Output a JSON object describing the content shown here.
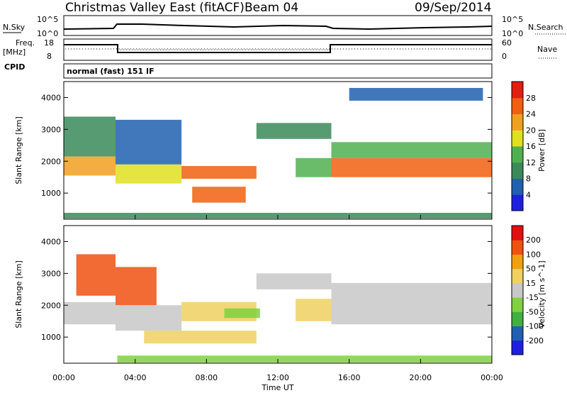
{
  "header": {
    "title": "Christmas Valley East (fitACF)",
    "beam": "Beam 04",
    "date": "09/Sep/2014"
  },
  "top_panels": {
    "nsky_label": "N.Sky",
    "nsearch_label": "N.Search",
    "nsky_ticks": [
      "10^5",
      "10^0"
    ],
    "nsearch_ticks": [
      "10^5",
      "10^0"
    ],
    "freq_label_1": "Freq.",
    "freq_label_2": "[MHz]",
    "freq_ticks": [
      "18",
      "8"
    ],
    "nave_label": "Nave",
    "nave_ticks": [
      "60",
      "0"
    ],
    "cpid_label": "CPID",
    "cpid_text": "normal (fast) 151 IF"
  },
  "x_axis": {
    "label": "Time UT",
    "ticks": [
      "00:00",
      "04:00",
      "08:00",
      "12:00",
      "16:00",
      "20:00",
      "00:00"
    ]
  },
  "colors": {
    "power_scale": [
      "#1f1fe0",
      "#2060b0",
      "#3a8a5a",
      "#50b050",
      "#e0e020",
      "#f0a020",
      "#f06010",
      "#e02010"
    ],
    "velocity_scale": [
      "#e01010",
      "#f05010",
      "#f0a010",
      "#f0d060",
      "#c8c8c8",
      "#80d040",
      "#40b040",
      "#2060b0",
      "#1f1fe0"
    ]
  },
  "chart_data": [
    {
      "type": "heatmap",
      "title": "Power",
      "xlabel": "Time UT",
      "ylabel": "Slant Range [km]",
      "xlim": [
        0,
        24
      ],
      "ylim": [
        180,
        4500
      ],
      "y_ticks": [
        1000,
        2000,
        3000,
        4000
      ],
      "colorbar": {
        "label": "Power [dB]",
        "ticks": [
          "4",
          "8",
          "12",
          "16",
          "20",
          "24",
          "28"
        ],
        "range": [
          0,
          30
        ]
      },
      "bands": [
        {
          "t": [
            0.0,
            2.9
          ],
          "range": [
            1550,
            2150
          ],
          "value": 22
        },
        {
          "t": [
            0.0,
            2.9
          ],
          "range": [
            2150,
            3400
          ],
          "value": 8
        },
        {
          "t": [
            2.9,
            6.6
          ],
          "range": [
            1300,
            1900
          ],
          "value": 18
        },
        {
          "t": [
            2.9,
            6.6
          ],
          "range": [
            1900,
            3300
          ],
          "value": 6
        },
        {
          "t": [
            6.6,
            10.8
          ],
          "range": [
            1450,
            1850
          ],
          "value": 24
        },
        {
          "t": [
            7.2,
            10.2
          ],
          "range": [
            700,
            1200
          ],
          "value": 26
        },
        {
          "t": [
            10.8,
            15.0
          ],
          "range": [
            2700,
            3200
          ],
          "value": 10
        },
        {
          "t": [
            13.0,
            15.0
          ],
          "range": [
            1500,
            2100
          ],
          "value": 14
        },
        {
          "t": [
            15.0,
            24.0
          ],
          "range": [
            1500,
            2100
          ],
          "value": 24
        },
        {
          "t": [
            15.0,
            24.0
          ],
          "range": [
            2100,
            2600
          ],
          "value": 12
        },
        {
          "t": [
            16.0,
            23.5
          ],
          "range": [
            3900,
            4300
          ],
          "value": 5
        },
        {
          "t": [
            0.0,
            24.0
          ],
          "range": [
            200,
            380
          ],
          "value": 10
        }
      ]
    },
    {
      "type": "heatmap",
      "title": "Velocity",
      "xlabel": "Time UT",
      "ylabel": "Slant Range [km]",
      "xlim": [
        0,
        24
      ],
      "ylim": [
        180,
        4500
      ],
      "y_ticks": [
        1000,
        2000,
        3000,
        4000
      ],
      "colorbar": {
        "label": "Velocity [m s^-1]",
        "ticks": [
          "200",
          "100",
          "50",
          "15",
          "-15",
          "-50",
          "-100",
          "-200"
        ],
        "range": [
          -250,
          250
        ]
      },
      "bands": [
        {
          "t": [
            0.0,
            2.9
          ],
          "range": [
            1400,
            2100
          ],
          "value": 0
        },
        {
          "t": [
            0.7,
            2.9
          ],
          "range": [
            2300,
            3600
          ],
          "value": 180
        },
        {
          "t": [
            2.9,
            5.2
          ],
          "range": [
            2000,
            3200
          ],
          "value": 150
        },
        {
          "t": [
            2.9,
            6.6
          ],
          "range": [
            1200,
            2000
          ],
          "value": 0
        },
        {
          "t": [
            6.6,
            10.8
          ],
          "range": [
            1500,
            2100
          ],
          "value": 40
        },
        {
          "t": [
            9.0,
            11.0
          ],
          "range": [
            1600,
            1900
          ],
          "value": -70
        },
        {
          "t": [
            4.5,
            10.8
          ],
          "range": [
            800,
            1200
          ],
          "value": 30
        },
        {
          "t": [
            10.8,
            15.0
          ],
          "range": [
            2500,
            3000
          ],
          "value": 0
        },
        {
          "t": [
            13.0,
            15.0
          ],
          "range": [
            1500,
            2200
          ],
          "value": 60
        },
        {
          "t": [
            15.0,
            24.0
          ],
          "range": [
            1400,
            2700
          ],
          "value": 0
        },
        {
          "t": [
            3.0,
            24.0
          ],
          "range": [
            200,
            420
          ],
          "value": -80
        }
      ]
    }
  ]
}
